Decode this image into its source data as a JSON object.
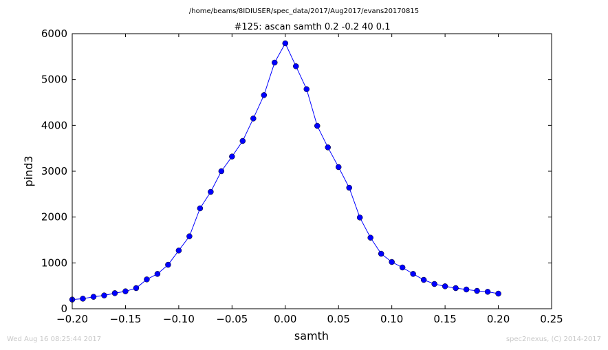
{
  "suptitle": "/home/beams/8IDIUSER/spec_data/2017/Aug2017/evans20170815",
  "footer": {
    "timestamp": "Wed Aug 16 08:25:44 2017",
    "credit": "spec2nexus, (C) 2014-2017"
  },
  "chart_data": {
    "type": "line",
    "title": "#125: ascan  samth 0.2 -0.2  40 0.1",
    "xlabel": "samth",
    "ylabel": "pind3",
    "xlim": [
      -0.2,
      0.25
    ],
    "ylim": [
      0,
      6000
    ],
    "x_ticks": [
      -0.2,
      -0.15,
      -0.1,
      -0.05,
      0.0,
      0.05,
      0.1,
      0.15,
      0.2,
      0.25
    ],
    "x_tick_labels": [
      "−0.20",
      "−0.15",
      "−0.10",
      "−0.05",
      "0.00",
      "0.05",
      "0.10",
      "0.15",
      "0.20",
      "0.25"
    ],
    "y_ticks": [
      0,
      1000,
      2000,
      3000,
      4000,
      5000,
      6000
    ],
    "y_tick_labels": [
      "0",
      "1000",
      "2000",
      "3000",
      "4000",
      "5000",
      "6000"
    ],
    "grid": false,
    "line_color": "#0000ff",
    "marker": "circle",
    "series": [
      {
        "x": [
          -0.2,
          -0.19,
          -0.18,
          -0.17,
          -0.16,
          -0.15,
          -0.14,
          -0.13,
          -0.12,
          -0.11,
          -0.1,
          -0.09,
          -0.08,
          -0.07,
          -0.06,
          -0.05,
          -0.04,
          -0.03,
          -0.02,
          -0.01,
          0.0,
          0.01,
          0.02,
          0.03,
          0.04,
          0.05,
          0.06,
          0.07,
          0.08,
          0.09,
          0.1,
          0.11,
          0.12,
          0.13,
          0.14,
          0.15,
          0.16,
          0.17,
          0.18,
          0.19,
          0.2
        ],
        "y": [
          200,
          220,
          260,
          290,
          340,
          380,
          450,
          640,
          760,
          960,
          1270,
          1580,
          2190,
          2550,
          3000,
          3320,
          3660,
          4150,
          4660,
          5370,
          5790,
          5290,
          4790,
          3990,
          3520,
          3090,
          2640,
          1990,
          1550,
          1200,
          1020,
          900,
          760,
          630,
          540,
          490,
          450,
          420,
          390,
          370,
          330
        ]
      }
    ]
  }
}
